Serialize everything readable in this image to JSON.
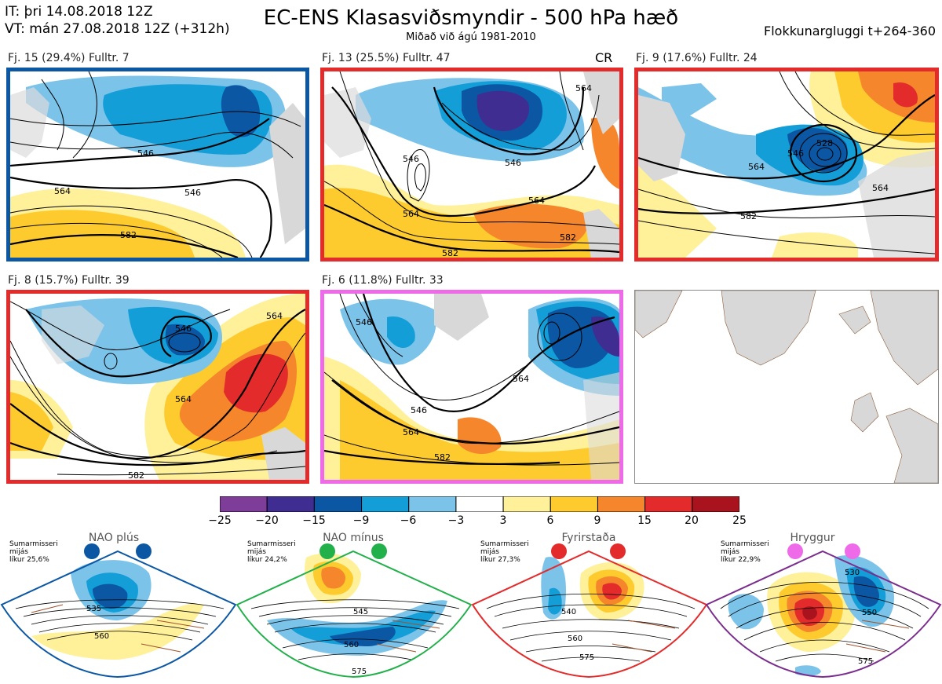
{
  "header": {
    "it": "IT: þri 14.08.2018 12Z",
    "vt": "VT: mán 27.08.2018 12Z  (+312h)",
    "title": "EC-ENS Klasasviðsmyndir - 500 hPa hæð",
    "subtitle": "Miðað við ágú 1981-2010",
    "window": "Flokkunargluggi t+264-360"
  },
  "panels": [
    {
      "label": "Fj. 15 (29.4%)  Fulltr. 7",
      "border_color": "#0b57a4",
      "contours": [
        "546",
        "564",
        "546",
        "582"
      ]
    },
    {
      "label": "Fj. 13 (25.5%)  Fulltr. 47",
      "border_color": "#e32b2b",
      "tag": "CR",
      "contours": [
        "546",
        "564",
        "564",
        "582",
        "546",
        "582",
        "564"
      ]
    },
    {
      "label": "Fj. 9 (17.6%)  Fulltr. 24",
      "border_color": "#e32b2b",
      "contours": [
        "528",
        "546",
        "564",
        "582",
        "564"
      ]
    },
    {
      "label": "Fj. 8 (15.7%)  Fulltr. 39",
      "border_color": "#e32b2b",
      "contours": [
        "546",
        "564",
        "564",
        "582"
      ]
    },
    {
      "label": "Fj. 6 (11.8%)  Fulltr. 33",
      "border_color": "#ee6ae8",
      "contours": [
        "546",
        "564",
        "546",
        "564",
        "582"
      ]
    }
  ],
  "colorbar": {
    "ticks": [
      "−25",
      "−20",
      "−15",
      "−9",
      "−6",
      "−3",
      "3",
      "6",
      "9",
      "15",
      "20",
      "25"
    ],
    "colors": [
      "#7e3d98",
      "#3f2d91",
      "#0b57a4",
      "#139ed8",
      "#7cc3ea",
      "#ffffff",
      "#fff09a",
      "#fecb2f",
      "#f5862b",
      "#e32b2b",
      "#a8131d"
    ]
  },
  "regimes": [
    {
      "name": "NAO plús",
      "info": [
        "Sumarmisseri",
        "mijás",
        "líkur 25,6%"
      ],
      "color": "#0b57a4",
      "contours": [
        "535",
        "560"
      ]
    },
    {
      "name": "NAO mínus",
      "info": [
        "Sumarmisseri",
        "mijás",
        "líkur 24,2%"
      ],
      "color": "#22b04b",
      "contours": [
        "545",
        "560",
        "575"
      ]
    },
    {
      "name": "Fyrirstaða",
      "info": [
        "Sumarmisseri",
        "mijás",
        "líkur 27,3%"
      ],
      "color": "#e32b2b",
      "contours": [
        "540",
        "560",
        "575"
      ]
    },
    {
      "name": "Hryggur",
      "info": [
        "Sumarmisseri",
        "mijás",
        "líkur 22,9%"
      ],
      "color": "#ee6ae8",
      "contours": [
        "530",
        "550",
        "575"
      ]
    }
  ]
}
